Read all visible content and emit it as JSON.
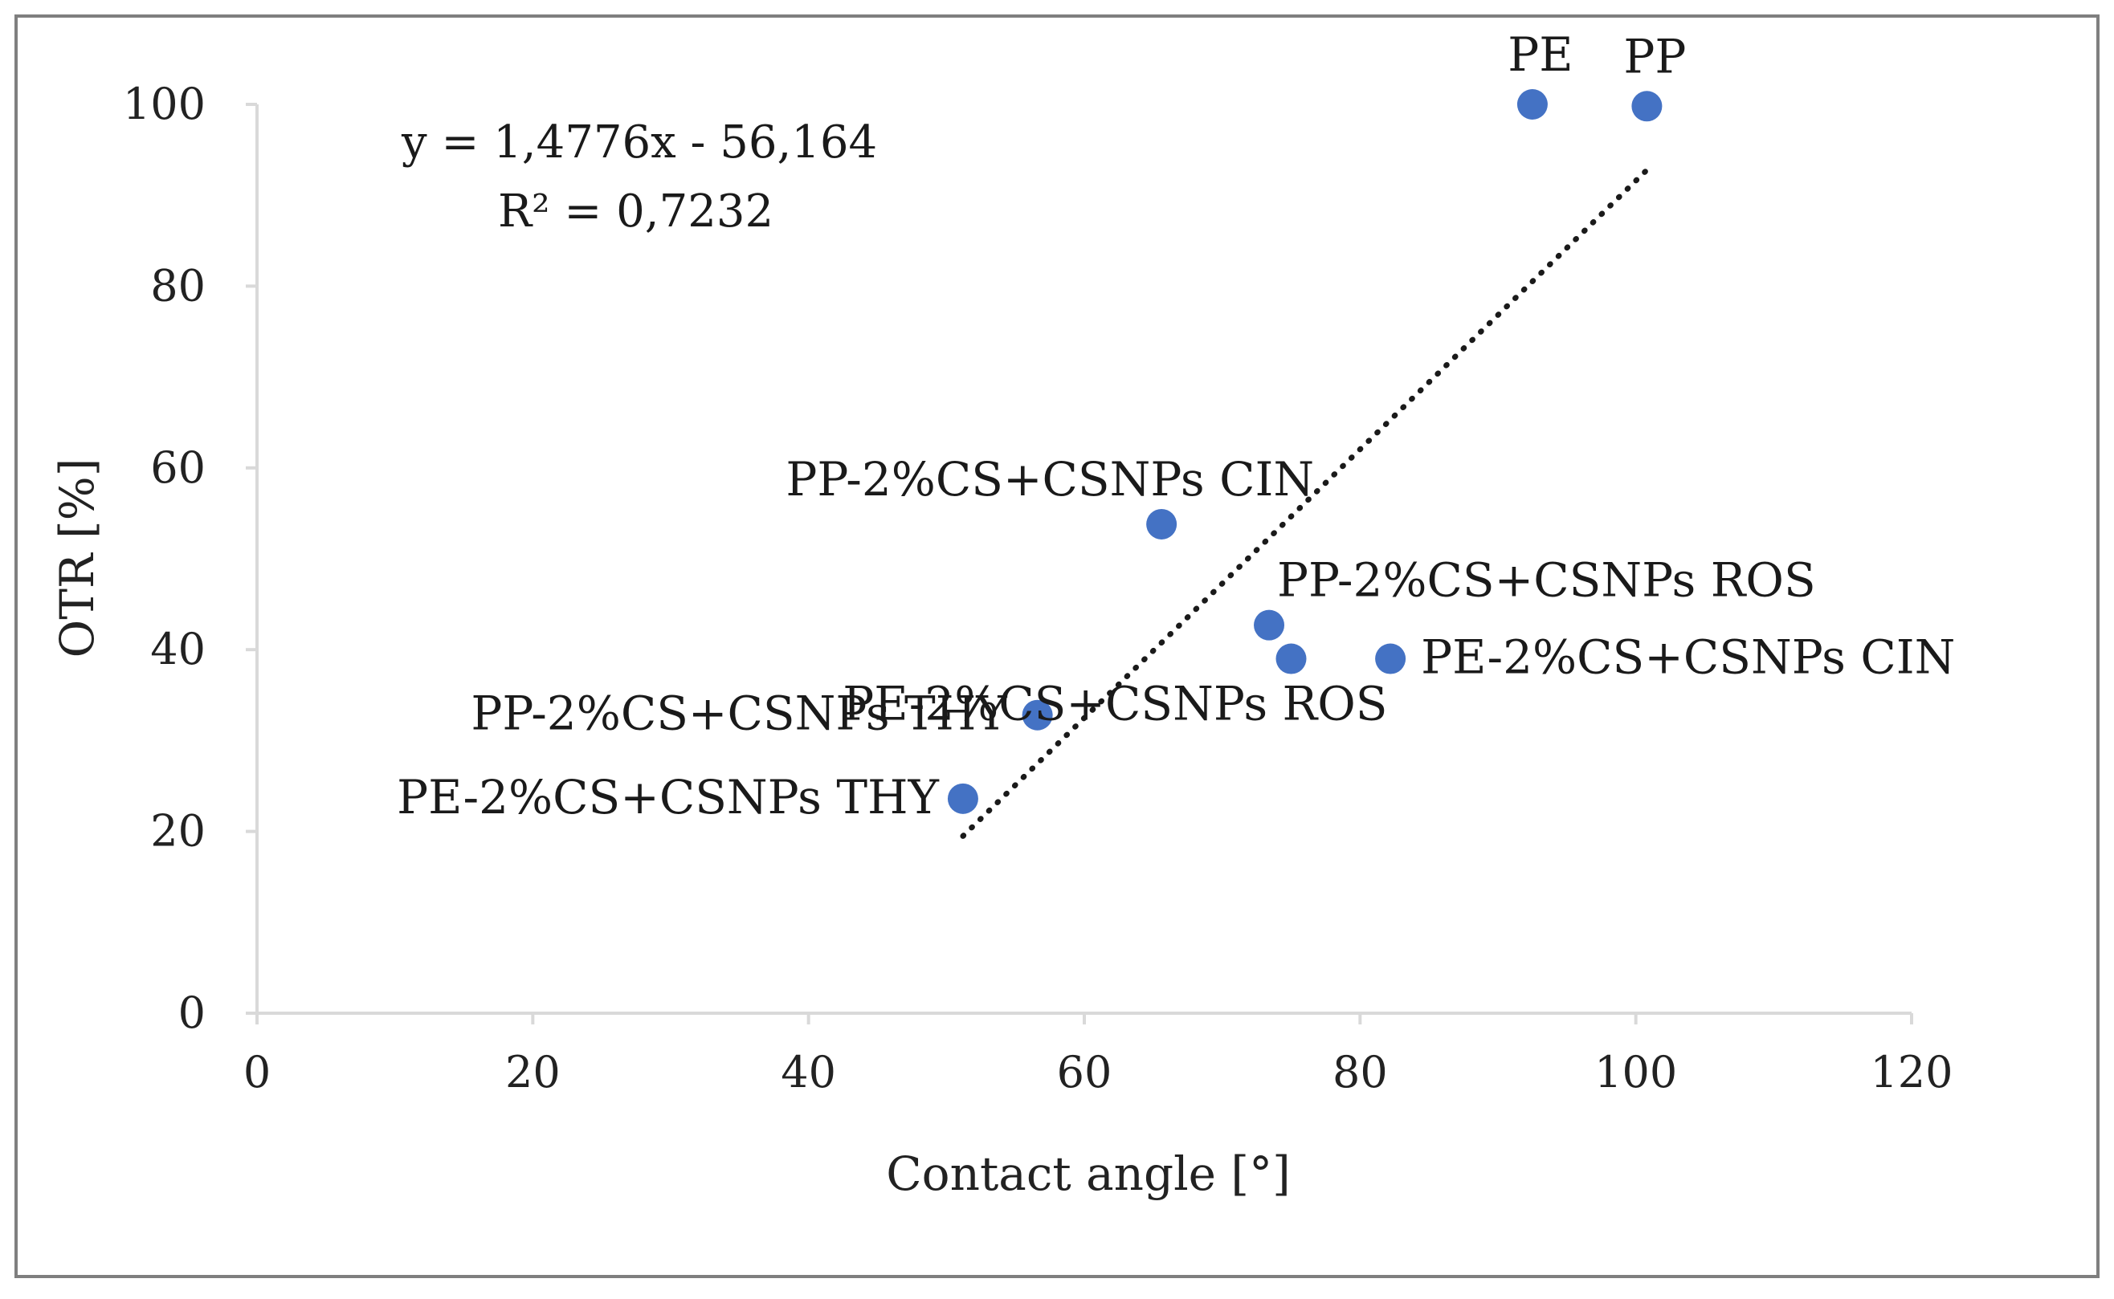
{
  "chart_data": {
    "type": "scatter",
    "title": "",
    "xlabel": "Contact angle [°]",
    "ylabel": "OTR [%]",
    "xlim": [
      0,
      120
    ],
    "ylim": [
      0,
      100
    ],
    "xticks": [
      0,
      20,
      40,
      60,
      80,
      100,
      120
    ],
    "yticks": [
      0,
      20,
      40,
      60,
      80,
      100
    ],
    "grid": false,
    "point_color": "#4472c4",
    "points": [
      {
        "label": "PE",
        "x": 92.5,
        "y": 100
      },
      {
        "label": "PP",
        "x": 100.8,
        "y": 99.8
      },
      {
        "label": "PP-2%CS+CSNPs CIN",
        "x": 65.6,
        "y": 53.8
      },
      {
        "label": "PP-2%CS+CSNPs ROS",
        "x": 73.4,
        "y": 42.7
      },
      {
        "label": "PE-2%CS+CSNPs ROS",
        "x": 75.0,
        "y": 39.0
      },
      {
        "label": "PE-2%CS+CSNPs CIN",
        "x": 82.2,
        "y": 39.0
      },
      {
        "label": "PP-2%CS+CSNPs THY",
        "x": 56.6,
        "y": 32.8
      },
      {
        "label": "PE-2%CS+CSNPs THY",
        "x": 51.2,
        "y": 23.6
      }
    ],
    "trendline": {
      "type": "linear",
      "style": "dotted",
      "slope": 1.4776,
      "intercept": -56.164,
      "x_start": 51.2,
      "x_end": 100.8,
      "equation_text": "y = 1,4776x - 56,164",
      "r2_text": "R² = 0,7232"
    }
  }
}
